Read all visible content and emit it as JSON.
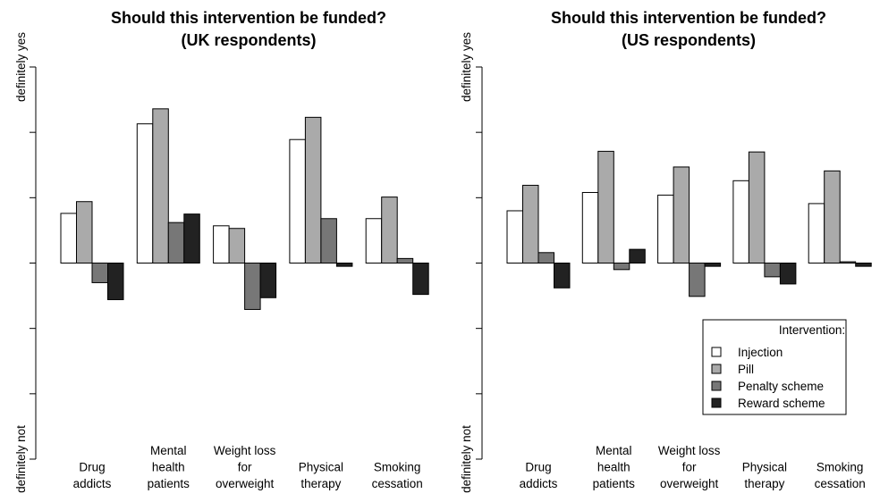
{
  "chart_data": [
    {
      "type": "bar",
      "title": "Should this intervention be funded?",
      "subtitle": "(UK respondents)",
      "ylabel_top": "definitely yes",
      "ylabel_bottom": "definitely not",
      "ylim": [
        -3,
        3
      ],
      "categories": [
        [
          "Drug",
          "addicts"
        ],
        [
          "Mental",
          "health",
          "patients"
        ],
        [
          "Weight loss",
          "for",
          "overweight"
        ],
        [
          "Physical",
          "therapy"
        ],
        [
          "Smoking",
          "cessation"
        ]
      ],
      "series": [
        {
          "name": "Injection",
          "color": "#ffffff",
          "values": [
            0.76,
            2.13,
            0.57,
            1.89,
            0.68
          ]
        },
        {
          "name": "Pill",
          "color": "#aaaaaa",
          "values": [
            0.94,
            2.36,
            0.53,
            2.23,
            1.01
          ]
        },
        {
          "name": "Penalty scheme",
          "color": "#777777",
          "values": [
            -0.3,
            0.62,
            -0.71,
            0.68,
            0.07
          ]
        },
        {
          "name": "Reward scheme",
          "color": "#222222",
          "values": [
            -0.56,
            0.75,
            -0.53,
            -0.05,
            -0.48
          ]
        }
      ]
    },
    {
      "type": "bar",
      "title": "Should this intervention be funded?",
      "subtitle": "(US respondents)",
      "ylabel_top": "definitely yes",
      "ylabel_bottom": "definitely not",
      "ylim": [
        -3,
        3
      ],
      "categories": [
        [
          "Drug",
          "addicts"
        ],
        [
          "Mental",
          "health",
          "patients"
        ],
        [
          "Weight loss",
          "for",
          "overweight"
        ],
        [
          "Physical",
          "therapy"
        ],
        [
          "Smoking",
          "cessation"
        ]
      ],
      "series": [
        {
          "name": "Injection",
          "color": "#ffffff",
          "values": [
            0.8,
            1.08,
            1.04,
            1.26,
            0.91
          ]
        },
        {
          "name": "Pill",
          "color": "#aaaaaa",
          "values": [
            1.19,
            1.71,
            1.47,
            1.7,
            1.41
          ]
        },
        {
          "name": "Penalty scheme",
          "color": "#777777",
          "values": [
            0.16,
            -0.1,
            -0.51,
            -0.21,
            0.02
          ]
        },
        {
          "name": "Reward scheme",
          "color": "#222222",
          "values": [
            -0.38,
            0.21,
            -0.05,
            -0.32,
            -0.05
          ]
        }
      ]
    }
  ],
  "legend": {
    "title": "Intervention:",
    "items": [
      {
        "label": "Injection",
        "color": "#ffffff"
      },
      {
        "label": "Pill",
        "color": "#aaaaaa"
      },
      {
        "label": "Penalty scheme",
        "color": "#777777"
      },
      {
        "label": "Reward scheme",
        "color": "#222222"
      }
    ]
  }
}
